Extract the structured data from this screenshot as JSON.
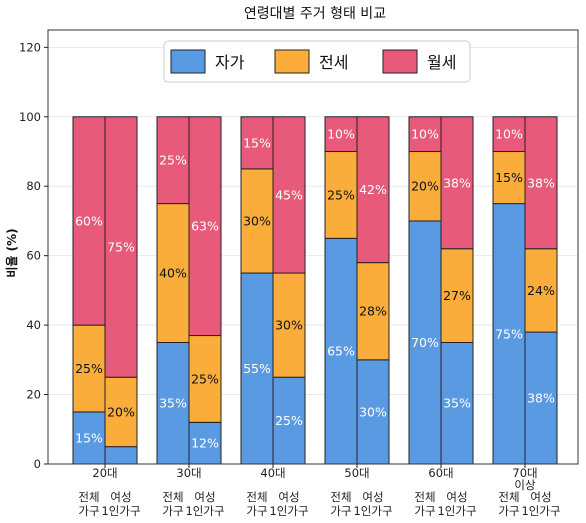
{
  "chart_data": {
    "type": "bar",
    "stacked": true,
    "title": "연령대별 주거 형태 비교",
    "xlabel": "",
    "ylabel": "비율 (%)",
    "ylim": [
      0,
      125
    ],
    "yticks": [
      0,
      20,
      40,
      60,
      80,
      100,
      120
    ],
    "grid": true,
    "legend_position": "top-center",
    "categories": [
      "20대",
      "30대",
      "40대",
      "50대",
      "60대",
      "70대 이상"
    ],
    "sub_categories": [
      "전체 가구",
      "여성 1인가구"
    ],
    "series": [
      {
        "name": "자가",
        "color": "#5a9ae3",
        "label_color": "white",
        "values": {
          "전체 가구": [
            15,
            35,
            55,
            65,
            70,
            75
          ],
          "여성 1인가구": [
            5,
            12,
            25,
            30,
            35,
            38
          ]
        },
        "labels": {
          "전체 가구": [
            "15%",
            "35%",
            "55%",
            "65%",
            "70%",
            "75%"
          ],
          "여성 1인가구": [
            "",
            "12%",
            "25%",
            "30%",
            "35%",
            "38%"
          ]
        }
      },
      {
        "name": "전세",
        "color": "#fbad3c",
        "label_color": "black",
        "values": {
          "전체 가구": [
            25,
            40,
            30,
            25,
            20,
            15
          ],
          "여성 1인가구": [
            20,
            25,
            30,
            28,
            27,
            24
          ]
        },
        "labels": {
          "전체 가구": [
            "25%",
            "40%",
            "30%",
            "25%",
            "20%",
            "15%"
          ],
          "여성 1인가구": [
            "20%",
            "25%",
            "30%",
            "28%",
            "27%",
            "24%"
          ]
        }
      },
      {
        "name": "월세",
        "color": "#e75a79",
        "label_color": "white",
        "values": {
          "전체 가구": [
            60,
            25,
            15,
            10,
            10,
            10
          ],
          "여성 1인가구": [
            75,
            63,
            45,
            42,
            38,
            38
          ]
        },
        "labels": {
          "전체 가구": [
            "60%",
            "25%",
            "15%",
            "10%",
            "10%",
            "10%"
          ],
          "여성 1인가구": [
            "75%",
            "63%",
            "45%",
            "42%",
            "38%",
            "38%"
          ]
        }
      }
    ]
  }
}
